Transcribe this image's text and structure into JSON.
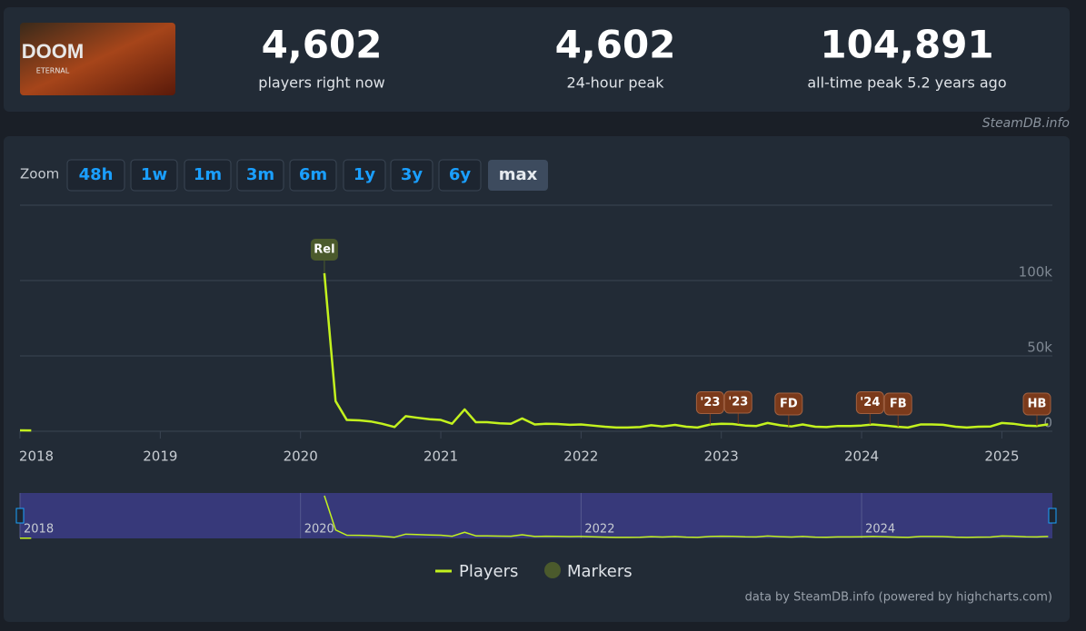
{
  "header": {
    "logo": {
      "title": "DOOM",
      "subtitle": "ETERNAL"
    },
    "stats": [
      {
        "value": "4,602",
        "label": "players right now"
      },
      {
        "value": "4,602",
        "label": "24-hour peak"
      },
      {
        "value": "104,891",
        "label": "all-time peak 5.2 years ago"
      }
    ],
    "source": "SteamDB.info"
  },
  "zoom": {
    "label": "Zoom",
    "buttons": [
      "48h",
      "1w",
      "1m",
      "3m",
      "6m",
      "1y",
      "3y",
      "6y",
      "max"
    ],
    "active": 8
  },
  "chart_data": {
    "type": "line",
    "x": [
      2018.0,
      2018.08,
      2018.12,
      2020.17,
      2020.25,
      2020.33,
      2020.42,
      2020.5,
      2020.58,
      2020.67,
      2020.75,
      2020.83,
      2020.92,
      2021.0,
      2021.08,
      2021.17,
      2021.25,
      2021.33,
      2021.42,
      2021.5,
      2021.58,
      2021.67,
      2021.75,
      2021.83,
      2021.92,
      2022.0,
      2022.08,
      2022.17,
      2022.25,
      2022.33,
      2022.42,
      2022.5,
      2022.58,
      2022.67,
      2022.75,
      2022.83,
      2022.92,
      2023.0,
      2023.08,
      2023.17,
      2023.25,
      2023.33,
      2023.42,
      2023.5,
      2023.58,
      2023.67,
      2023.75,
      2023.83,
      2023.92,
      2024.0,
      2024.08,
      2024.17,
      2024.25,
      2024.33,
      2024.42,
      2024.5,
      2024.58,
      2024.67,
      2024.75,
      2024.83,
      2024.92,
      2025.0,
      2025.08,
      2025.17,
      2025.25,
      2025.33
    ],
    "series": [
      {
        "name": "Players",
        "color": "#c3f21e",
        "values": [
          600,
          500,
          null,
          104891,
          20000,
          7500,
          7200,
          6500,
          5000,
          2800,
          10000,
          9000,
          8000,
          7500,
          5000,
          14500,
          6000,
          6000,
          5300,
          5000,
          8500,
          4500,
          5000,
          4800,
          4300,
          4500,
          3800,
          3000,
          2500,
          2500,
          2800,
          4000,
          3200,
          4200,
          3000,
          2500,
          4500,
          5000,
          4800,
          3800,
          3500,
          5500,
          4000,
          3200,
          4500,
          3000,
          2800,
          3500,
          3500,
          3800,
          4500,
          3800,
          3000,
          2500,
          4500,
          4500,
          4300,
          3000,
          2500,
          3000,
          3200,
          5500,
          5000,
          3800,
          3500,
          4602
        ]
      }
    ],
    "markers_name": "Markers",
    "markers_color": "#4b5a2c",
    "markers": [
      {
        "x": 2020.17,
        "label": "Rel",
        "color": "#4b5a2c"
      },
      {
        "x": 2022.92,
        "label": "'23",
        "color": "#7b3a1b"
      },
      {
        "x": 2023.12,
        "label": "'23",
        "color": "#7b3a1b"
      },
      {
        "x": 2023.48,
        "label": "FD",
        "color": "#7b3a1b"
      },
      {
        "x": 2024.06,
        "label": "'24",
        "color": "#7b3a1b"
      },
      {
        "x": 2024.26,
        "label": "FB",
        "color": "#7b3a1b"
      },
      {
        "x": 2025.25,
        "label": "HB",
        "color": "#7b3a1b"
      }
    ],
    "xlim": [
      2018,
      2025.36
    ],
    "xticks": [
      2018,
      2019,
      2020,
      2021,
      2022,
      2023,
      2024,
      2025
    ],
    "ylim": [
      0,
      150000
    ],
    "yticks": [
      0,
      {
        "value": 50000,
        "label": "50k"
      },
      {
        "value": 100000,
        "label": "100k"
      }
    ],
    "grid": true,
    "navigator_xticks": [
      2018,
      2020,
      2022,
      2024
    ],
    "credits": "data by SteamDB.info (powered by highcharts.com)"
  }
}
